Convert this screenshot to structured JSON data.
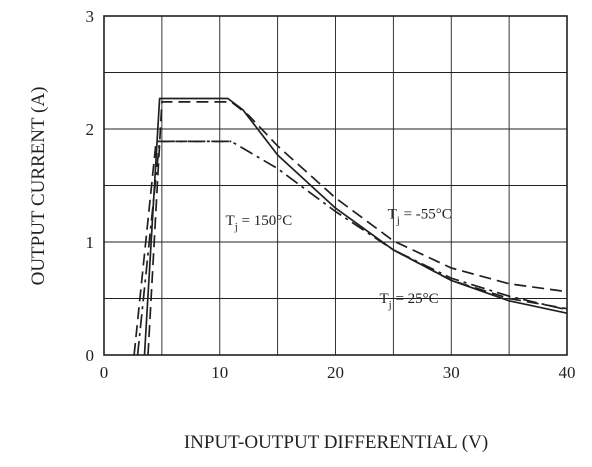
{
  "chart_data": {
    "type": "line",
    "title": "",
    "xlabel": "INPUT-OUTPUT DIFFERENTIAL (V)",
    "ylabel": "OUTPUT CURRENT (A)",
    "xlim": [
      0,
      40
    ],
    "ylim": [
      0,
      3
    ],
    "x_ticks": [
      "0",
      "10",
      "20",
      "30",
      "40"
    ],
    "y_ticks": [
      "0",
      "1",
      "2",
      "3"
    ],
    "grid": true,
    "x_grid_step": 5,
    "y_grid_step": 0.5,
    "series": [
      {
        "label_text": "T",
        "label_sub": "j",
        "label_rest": " = 25°C",
        "style": "solid",
        "color": "#231f20",
        "points": [
          [
            3.5,
            0
          ],
          [
            4.8,
            2.27
          ],
          [
            10.7,
            2.27
          ],
          [
            12,
            2.17
          ],
          [
            15,
            1.77
          ],
          [
            20,
            1.3
          ],
          [
            25,
            0.93
          ],
          [
            30,
            0.66
          ],
          [
            35,
            0.48
          ],
          [
            40,
            0.37
          ]
        ]
      },
      {
        "label_text": "T",
        "label_sub": "j",
        "label_rest": " = -55°C",
        "style": "dashed",
        "color": "#231f20",
        "points": [
          [
            3.8,
            0
          ],
          [
            5.0,
            2.24
          ],
          [
            11.0,
            2.24
          ],
          [
            12.5,
            2.12
          ],
          [
            15,
            1.85
          ],
          [
            20,
            1.39
          ],
          [
            25,
            1.01
          ],
          [
            30,
            0.77
          ],
          [
            35,
            0.63
          ],
          [
            40,
            0.56
          ]
        ]
      },
      {
        "label_text": "T",
        "label_sub": "j",
        "label_rest": " = 150°C",
        "style": "dashdot",
        "color": "#231f20",
        "points": [
          [
            2.9,
            0
          ],
          [
            4.8,
            1.89
          ],
          [
            11.0,
            1.89
          ],
          [
            15,
            1.65
          ],
          [
            20,
            1.27
          ],
          [
            25,
            0.93
          ],
          [
            30,
            0.68
          ],
          [
            35,
            0.52
          ],
          [
            40,
            0.4
          ]
        ]
      },
      {
        "label_text": "",
        "style": "dashed",
        "color": "#231f20",
        "points": [
          [
            2.6,
            0
          ],
          [
            4.5,
            1.89
          ],
          [
            11.0,
            1.89
          ]
        ]
      },
      {
        "label_text": "",
        "style": "dashed",
        "color": "#231f20",
        "points": [
          [
            25,
            0.93
          ],
          [
            30,
            0.66
          ],
          [
            35,
            0.5
          ],
          [
            40,
            0.41
          ]
        ]
      }
    ],
    "annotations": [
      {
        "sub": "j",
        "text": "T",
        "rest": " = 150°C",
        "at": [
          10.5,
          1.15
        ]
      },
      {
        "sub": "j",
        "text": "T",
        "rest": " = -55°C",
        "at": [
          24.5,
          1.21
        ]
      },
      {
        "sub": "j",
        "text": "T",
        "rest": " = 25°C",
        "at": [
          23.8,
          0.46
        ]
      }
    ]
  }
}
